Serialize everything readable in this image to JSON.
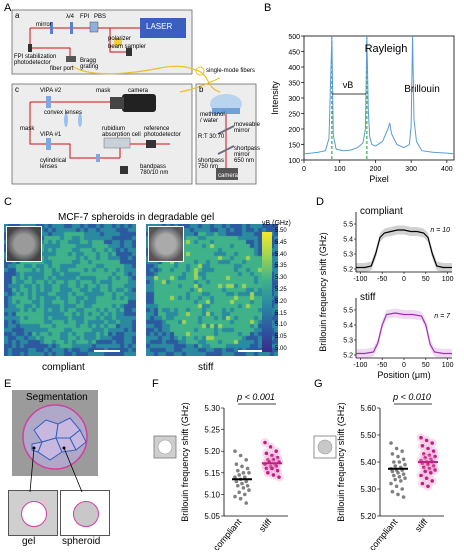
{
  "panel_labels": {
    "A": "A",
    "B": "B",
    "C": "C",
    "D": "D",
    "E": "E",
    "F": "F",
    "G": "G"
  },
  "panel_a": {
    "sub_a": "a",
    "sub_b": "b",
    "sub_c": "c",
    "laser": "LASER",
    "labels": {
      "lambda4": "λ/4",
      "fpi": "FPI",
      "pbs": "PBS",
      "mirror": "mirror",
      "polarizer": "polarizer",
      "beam_sampler": "beam sampler",
      "fpi_stab": "FPI stabilization photodetector",
      "bragg": "Bragg grating",
      "fiber_port": "fiber port",
      "single_mode": "single-mode fibers",
      "vipa2": "VIPA #2",
      "mask_top": "mask",
      "camera": "camera",
      "convex": "convex lenses",
      "mask_left": "mask",
      "vipa1": "VIPA #1",
      "rubidium": "rubidium absorption cell",
      "reference": "reference photodetector",
      "cylindrical": "cylindrical lenses",
      "bandpass": "bandpass 780/10 nm",
      "methanol": "methanol / water",
      "rt": "R:T 30:70",
      "moveable": "moveable mirror",
      "shortpass650": "shortpass mirror 650 nm",
      "shortpass750": "shortpass 750 nm",
      "camera_b": "camera"
    }
  },
  "panel_b": {
    "ylabel": "Intensity",
    "xlabel": "Pixel",
    "rayleigh": "Rayleigh",
    "brillouin": "Brillouin",
    "vb": "νB",
    "yticks": [
      "500",
      "450",
      "400",
      "350",
      "300",
      "250",
      "200",
      "150",
      "100"
    ],
    "xticks": [
      "0",
      "100",
      "200",
      "300",
      "400"
    ]
  },
  "panel_c": {
    "title": "MCF-7 spheroids in degradable gel",
    "compliant": "compliant",
    "stiff": "stiff",
    "colorbar_title": "νB (GHz)",
    "colorbar_ticks": [
      "5.50",
      "5.45",
      "5.40",
      "5.35",
      "5.30",
      "5.25",
      "5.20",
      "5.15",
      "5.10",
      "5.05",
      "5.00"
    ]
  },
  "panel_d": {
    "ylabel": "Brillouin frequency shift (GHz)",
    "xlabel": "Position (μm)",
    "compliant": "compliant",
    "stiff": "stiff",
    "n_compliant": "n = 10",
    "n_stiff": "n = 7",
    "yticks": [
      "5.5",
      "5.4",
      "5.3",
      "5.2"
    ],
    "xticks": [
      "-100",
      "-50",
      "0",
      "50",
      "100"
    ],
    "compliant_color": "#000000",
    "stiff_color": "#a030b0"
  },
  "panel_e": {
    "title": "Segmentation",
    "gel": "gel",
    "spheroid": "spheroid"
  },
  "panel_f": {
    "pval": "p < 0.001",
    "ylabel": "Brillouin frequency shift (GHz)",
    "yticks": [
      "5.30",
      "5.25",
      "5.20",
      "5.15",
      "5.10",
      "5.05"
    ],
    "categories": [
      "compliant",
      "stiff"
    ]
  },
  "panel_g": {
    "pval": "p < 0.010",
    "ylabel": "Brillouin frequency shift (GHz)",
    "yticks": [
      "5.60",
      "5.50",
      "5.40",
      "5.30",
      "5.20"
    ],
    "categories": [
      "compliant",
      "stiff"
    ]
  },
  "chart_data": [
    {
      "type": "line",
      "panel": "B",
      "xlabel": "Pixel",
      "ylabel": "Intensity",
      "xlim": [
        0,
        420
      ],
      "ylim": [
        100,
        500
      ],
      "annotations": [
        "Rayleigh",
        "Brillouin",
        "νB"
      ],
      "x": [
        0,
        20,
        40,
        60,
        70,
        78,
        82,
        90,
        110,
        130,
        150,
        165,
        172,
        176,
        180,
        184,
        190,
        200,
        220,
        235,
        240,
        245,
        260,
        280,
        295,
        300,
        304,
        308,
        315,
        330,
        360,
        400,
        420
      ],
      "y": [
        120,
        122,
        125,
        130,
        170,
        500,
        180,
        135,
        130,
        132,
        140,
        155,
        200,
        500,
        260,
        175,
        150,
        145,
        160,
        200,
        220,
        185,
        150,
        140,
        150,
        210,
        500,
        230,
        160,
        130,
        125,
        122,
        120
      ]
    },
    {
      "type": "line",
      "panel": "D-compliant",
      "xlabel": "Position (μm)",
      "ylabel": "Brillouin frequency shift (GHz)",
      "xlim": [
        -110,
        110
      ],
      "ylim": [
        5.18,
        5.58
      ],
      "x": [
        -110,
        -90,
        -75,
        -65,
        -55,
        -45,
        -30,
        -15,
        0,
        15,
        30,
        45,
        55,
        65,
        75,
        90,
        110
      ],
      "y": [
        5.21,
        5.21,
        5.22,
        5.3,
        5.41,
        5.44,
        5.45,
        5.46,
        5.46,
        5.45,
        5.45,
        5.44,
        5.41,
        5.3,
        5.22,
        5.21,
        5.21
      ]
    },
    {
      "type": "line",
      "panel": "D-stiff",
      "xlabel": "Position (μm)",
      "ylabel": "Brillouin frequency shift (GHz)",
      "xlim": [
        -110,
        110
      ],
      "ylim": [
        5.18,
        5.58
      ],
      "x": [
        -110,
        -90,
        -70,
        -60,
        -50,
        -40,
        -20,
        0,
        20,
        40,
        50,
        60,
        70,
        90,
        110
      ],
      "y": [
        5.21,
        5.21,
        5.22,
        5.28,
        5.4,
        5.47,
        5.48,
        5.47,
        5.47,
        5.46,
        5.4,
        5.27,
        5.22,
        5.21,
        5.21
      ]
    },
    {
      "type": "scatter",
      "panel": "F",
      "ylabel": "Brillouin frequency shift (GHz)",
      "categories": [
        "compliant",
        "stiff"
      ],
      "ylim": [
        5.05,
        5.3
      ],
      "series": [
        {
          "name": "compliant",
          "mean": 5.135,
          "values": [
            5.2,
            5.19,
            5.18,
            5.17,
            5.165,
            5.16,
            5.155,
            5.15,
            5.15,
            5.145,
            5.14,
            5.14,
            5.135,
            5.13,
            5.13,
            5.125,
            5.12,
            5.12,
            5.115,
            5.11,
            5.105,
            5.1,
            5.095,
            5.09,
            5.08
          ]
        },
        {
          "name": "stiff",
          "mean": 5.172,
          "values": [
            5.22,
            5.21,
            5.2,
            5.195,
            5.19,
            5.185,
            5.18,
            5.18,
            5.175,
            5.175,
            5.17,
            5.17,
            5.165,
            5.165,
            5.16,
            5.16,
            5.155,
            5.15,
            5.145,
            5.14
          ]
        }
      ]
    },
    {
      "type": "scatter",
      "panel": "G",
      "ylabel": "Brillouin frequency shift (GHz)",
      "categories": [
        "compliant",
        "stiff"
      ],
      "ylim": [
        5.2,
        5.6
      ],
      "series": [
        {
          "name": "compliant",
          "mean": 5.375,
          "values": [
            5.47,
            5.45,
            5.44,
            5.43,
            5.42,
            5.41,
            5.4,
            5.4,
            5.39,
            5.385,
            5.38,
            5.375,
            5.37,
            5.37,
            5.365,
            5.36,
            5.355,
            5.35,
            5.345,
            5.34,
            5.335,
            5.33,
            5.32,
            5.31,
            5.3,
            5.29,
            5.28,
            5.27
          ]
        },
        {
          "name": "stiff",
          "mean": 5.4,
          "values": [
            5.49,
            5.48,
            5.47,
            5.46,
            5.45,
            5.44,
            5.43,
            5.425,
            5.42,
            5.415,
            5.41,
            5.405,
            5.4,
            5.4,
            5.395,
            5.39,
            5.385,
            5.38,
            5.375,
            5.37,
            5.365,
            5.36,
            5.35,
            5.34,
            5.33,
            5.32,
            5.31
          ]
        }
      ]
    }
  ]
}
